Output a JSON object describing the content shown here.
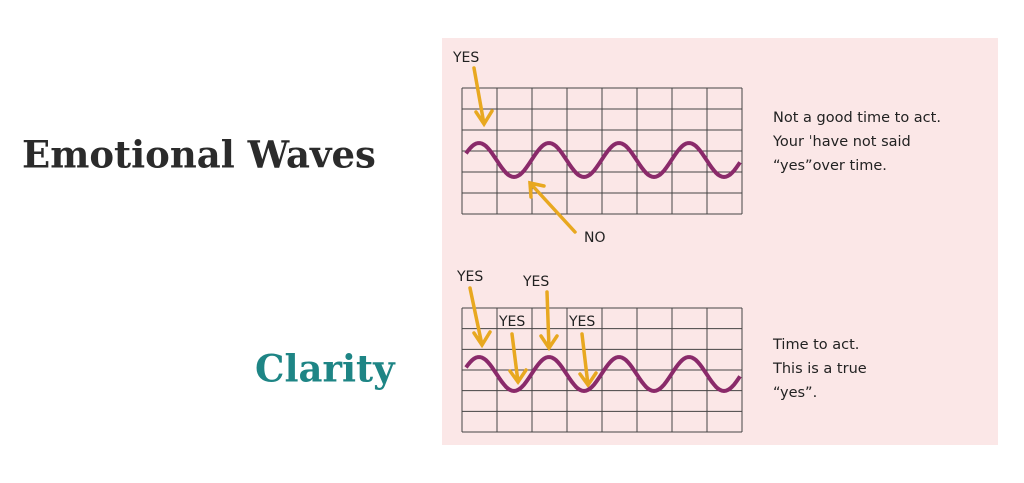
{
  "headings": {
    "emotional": "Emotional Waves",
    "clarity": "Clarity"
  },
  "panels": [
    {
      "labels": [
        "YES",
        "NO"
      ],
      "note": [
        "Not a good time to act.",
        "Your ˈhave not said",
        "“yes”over time."
      ]
    },
    {
      "labels": [
        "YES",
        "YES",
        "YES",
        "YES"
      ],
      "note": [
        "Time to act.",
        "This is a true",
        "“yes”."
      ]
    }
  ]
}
